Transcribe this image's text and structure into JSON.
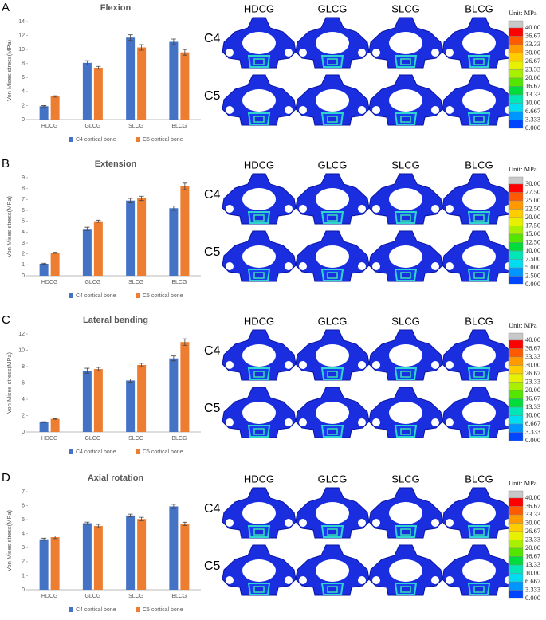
{
  "chart_data": [
    {
      "type": "bar",
      "title": "Flexion",
      "y_label": "Von Mises stress(MPa)",
      "categories": [
        "HDCG",
        "GLCG",
        "SLCG",
        "BLCG"
      ],
      "series": [
        {
          "name": "C4 cortical bone",
          "color": "#4472c4",
          "values": [
            1.9,
            8.1,
            11.7,
            11.1
          ],
          "errors": [
            0.1,
            0.3,
            0.4,
            0.4
          ]
        },
        {
          "name": "C5 cortical bone",
          "color": "#ed7d31",
          "values": [
            3.3,
            7.4,
            10.3,
            9.6
          ],
          "errors": [
            0.1,
            0.2,
            0.4,
            0.4
          ]
        }
      ],
      "ylim": [
        0,
        14
      ],
      "yticks": [
        0,
        2,
        4,
        6,
        8,
        10,
        12,
        14
      ]
    },
    {
      "type": "bar",
      "title": "Extension",
      "y_label": "Von Mises stress(MPa)",
      "categories": [
        "HDCG",
        "GLCG",
        "SLCG",
        "BLCG"
      ],
      "series": [
        {
          "name": "C4 cortical bone",
          "color": "#4472c4",
          "values": [
            1.1,
            4.3,
            6.9,
            6.2
          ],
          "errors": [
            0.05,
            0.15,
            0.2,
            0.2
          ]
        },
        {
          "name": "C5 cortical bone",
          "color": "#ed7d31",
          "values": [
            2.1,
            5.0,
            7.1,
            8.2
          ],
          "errors": [
            0.05,
            0.1,
            0.2,
            0.3
          ]
        }
      ],
      "ylim": [
        0,
        9
      ],
      "yticks": [
        0,
        1,
        2,
        3,
        4,
        5,
        6,
        7,
        8,
        9
      ]
    },
    {
      "type": "bar",
      "title": "Lateral bending",
      "y_label": "Von Mises stress(MPa)",
      "categories": [
        "HDCG",
        "GLCG",
        "SLCG",
        "BLCG"
      ],
      "series": [
        {
          "name": "C4 cortical bone",
          "color": "#4472c4",
          "values": [
            1.2,
            7.5,
            6.3,
            9.0
          ],
          "errors": [
            0.05,
            0.3,
            0.2,
            0.3
          ]
        },
        {
          "name": "C5 cortical bone",
          "color": "#ed7d31",
          "values": [
            1.6,
            7.7,
            8.2,
            11.0
          ],
          "errors": [
            0.05,
            0.2,
            0.2,
            0.4
          ]
        }
      ],
      "ylim": [
        0,
        12
      ],
      "yticks": [
        0,
        2,
        4,
        6,
        8,
        10,
        12
      ]
    },
    {
      "type": "bar",
      "title": "Axial rotation",
      "y_label": "Von Mises stress(MPa)",
      "categories": [
        "HDCG",
        "GLCG",
        "SLCG",
        "BLCG"
      ],
      "series": [
        {
          "name": "C4 cortical bone",
          "color": "#4472c4",
          "values": [
            3.6,
            4.75,
            5.3,
            5.95
          ],
          "errors": [
            0.08,
            0.08,
            0.1,
            0.15
          ]
        },
        {
          "name": "C5 cortical bone",
          "color": "#ed7d31",
          "values": [
            3.75,
            4.55,
            5.05,
            4.7
          ],
          "errors": [
            0.1,
            0.12,
            0.12,
            0.12
          ]
        }
      ],
      "ylim": [
        0,
        7
      ],
      "yticks": [
        0,
        1,
        2,
        3,
        4,
        5,
        6,
        7
      ]
    }
  ],
  "panels": [
    {
      "label": "A",
      "columns": [
        "HDCG",
        "GLCG",
        "SLCG",
        "BLCG"
      ],
      "rows": [
        "C4",
        "C5"
      ],
      "colorbar": {
        "unit": "Unit: MPa",
        "labels": [
          "40.00",
          "36.67",
          "33.33",
          "30.00",
          "26.67",
          "23.33",
          "20.00",
          "16.67",
          "13.33",
          "10.00",
          "6.667",
          "3.333",
          "0.000"
        ]
      }
    },
    {
      "label": "B",
      "columns": [
        "HDCG",
        "GLCG",
        "SLCG",
        "BLCG"
      ],
      "rows": [
        "C4",
        "C5"
      ],
      "colorbar": {
        "unit": "Unit: MPa",
        "labels": [
          "30.00",
          "27.50",
          "25.00",
          "22.50",
          "20.00",
          "17.50",
          "15.00",
          "12.50",
          "10.00",
          "7.500",
          "5.000",
          "2.500",
          "0.000"
        ]
      }
    },
    {
      "label": "C",
      "columns": [
        "HDCG",
        "GLCG",
        "SLCG",
        "BLCG"
      ],
      "rows": [
        "C4",
        "C5"
      ],
      "colorbar": {
        "unit": "Unit: MPa",
        "labels": [
          "40.00",
          "36.67",
          "33.33",
          "30.00",
          "26.67",
          "23.33",
          "20.00",
          "16.67",
          "13.33",
          "10.00",
          "6.667",
          "3.333",
          "0.000"
        ]
      }
    },
    {
      "label": "D",
      "columns": [
        "HDCG",
        "GLCG",
        "SLCG",
        "BLCG"
      ],
      "rows": [
        "C4",
        "C5"
      ],
      "colorbar": {
        "unit": "Unit: MPa",
        "labels": [
          "40.00",
          "36.67",
          "33.33",
          "30.00",
          "26.67",
          "23.33",
          "20.00",
          "16.67",
          "13.33",
          "10.00",
          "6.667",
          "3.333",
          "0.000"
        ]
      }
    }
  ]
}
